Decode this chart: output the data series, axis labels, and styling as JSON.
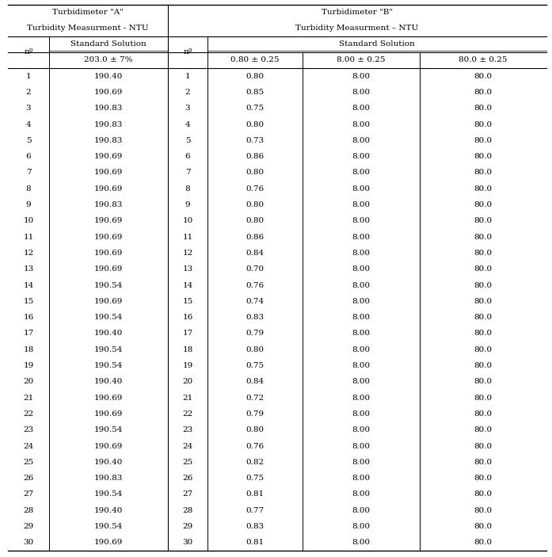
{
  "title_a_line1": "Turbidimeter \"A\"",
  "title_a_line2": "Turbidity Measurment - NTU",
  "title_b_line1": "Turbidimeter \"B\"",
  "title_b_line2": "Turbidity Measurment – NTU",
  "header_no": "nº",
  "header_std_sol": "Standard Solution",
  "header_a_sub": "203.0 ± 7%",
  "header_b_sub1": "0.80 ± 0.25",
  "header_b_sub2": "8.00 ± 0.25",
  "header_b_sub3": "80.0 ± 0.25",
  "col_a": [
    190.4,
    190.69,
    190.83,
    190.83,
    190.83,
    190.69,
    190.69,
    190.69,
    190.83,
    190.69,
    190.69,
    190.69,
    190.69,
    190.54,
    190.69,
    190.54,
    190.4,
    190.54,
    190.54,
    190.4,
    190.69,
    190.69,
    190.54,
    190.69,
    190.4,
    190.83,
    190.54,
    190.4,
    190.54,
    190.69
  ],
  "col_b1": [
    0.8,
    0.85,
    0.75,
    0.8,
    0.73,
    0.86,
    0.8,
    0.76,
    0.8,
    0.8,
    0.86,
    0.84,
    0.7,
    0.76,
    0.74,
    0.83,
    0.79,
    0.8,
    0.75,
    0.84,
    0.72,
    0.79,
    0.8,
    0.76,
    0.82,
    0.75,
    0.81,
    0.77,
    0.83,
    0.81
  ],
  "col_b2": [
    8.0,
    8.0,
    8.0,
    8.0,
    8.0,
    8.0,
    8.0,
    8.0,
    8.0,
    8.0,
    8.0,
    8.0,
    8.0,
    8.0,
    8.0,
    8.0,
    8.0,
    8.0,
    8.0,
    8.0,
    8.0,
    8.0,
    8.0,
    8.0,
    8.0,
    8.0,
    8.0,
    8.0,
    8.0,
    8.0
  ],
  "col_b3": [
    80.0,
    80.0,
    80.0,
    80.0,
    80.0,
    80.0,
    80.0,
    80.0,
    80.0,
    80.0,
    80.0,
    80.0,
    80.0,
    80.0,
    80.0,
    80.0,
    80.0,
    80.0,
    80.0,
    80.0,
    80.0,
    80.0,
    80.0,
    80.0,
    80.0,
    80.0,
    80.0,
    80.0,
    80.0,
    80.0
  ],
  "n_rows": 30,
  "bg_color": "#ffffff",
  "text_color": "#000000",
  "font_size": 7.5,
  "header_font_size": 7.5
}
